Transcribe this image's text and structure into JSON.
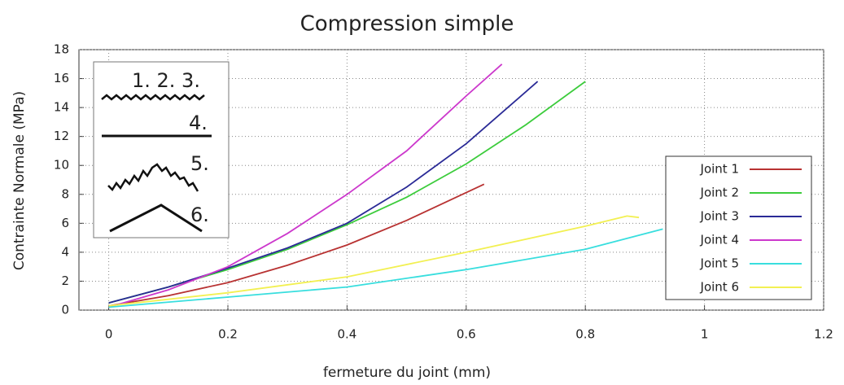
{
  "chart_data": {
    "type": "line",
    "title": "Compression simple",
    "x_label": "fermeture du joint (mm)",
    "y_label": "Contrainte Normale (MPa)",
    "xlim": [
      -0.05,
      1.2
    ],
    "ylim": [
      0,
      18
    ],
    "xticks": [
      0,
      0.2,
      0.4,
      0.6,
      0.8,
      1,
      1.2
    ],
    "yticks": [
      0,
      2,
      4,
      6,
      8,
      10,
      12,
      14,
      16,
      18
    ],
    "grid": true,
    "legend": "lower right",
    "annotations": [
      "1. 2. 3.",
      "4.",
      "5.",
      "6."
    ],
    "series": [
      {
        "name": "Joint 1",
        "color": "#b83232",
        "x": [
          0,
          0.1,
          0.2,
          0.3,
          0.4,
          0.5,
          0.63
        ],
        "values": [
          0.3,
          1.0,
          1.9,
          3.1,
          4.5,
          6.2,
          8.7
        ]
      },
      {
        "name": "Joint 2",
        "color": "#3ccc3c",
        "x": [
          0,
          0.1,
          0.2,
          0.3,
          0.4,
          0.5,
          0.6,
          0.7,
          0.8
        ],
        "values": [
          0.5,
          1.6,
          2.8,
          4.2,
          5.9,
          7.8,
          10.1,
          12.8,
          15.8
        ]
      },
      {
        "name": "Joint 3",
        "color": "#2a2a96",
        "x": [
          0,
          0.1,
          0.2,
          0.3,
          0.4,
          0.5,
          0.6,
          0.72
        ],
        "values": [
          0.5,
          1.6,
          2.9,
          4.3,
          6.0,
          8.5,
          11.5,
          15.8
        ]
      },
      {
        "name": "Joint 4",
        "color": "#cc38cc",
        "x": [
          0,
          0.1,
          0.2,
          0.3,
          0.4,
          0.5,
          0.6,
          0.66
        ],
        "values": [
          0.2,
          1.4,
          3.0,
          5.3,
          8.0,
          11.0,
          14.8,
          17.0
        ]
      },
      {
        "name": "Joint 5",
        "color": "#38dede",
        "x": [
          0,
          0.2,
          0.4,
          0.6,
          0.8,
          0.93
        ],
        "values": [
          0.2,
          0.9,
          1.6,
          2.8,
          4.2,
          5.6
        ]
      },
      {
        "name": "Joint 6",
        "color": "#f2f052",
        "x": [
          0,
          0.2,
          0.4,
          0.6,
          0.8,
          0.87,
          0.89
        ],
        "values": [
          0.3,
          1.2,
          2.3,
          4.0,
          5.8,
          6.5,
          6.4
        ]
      }
    ]
  }
}
